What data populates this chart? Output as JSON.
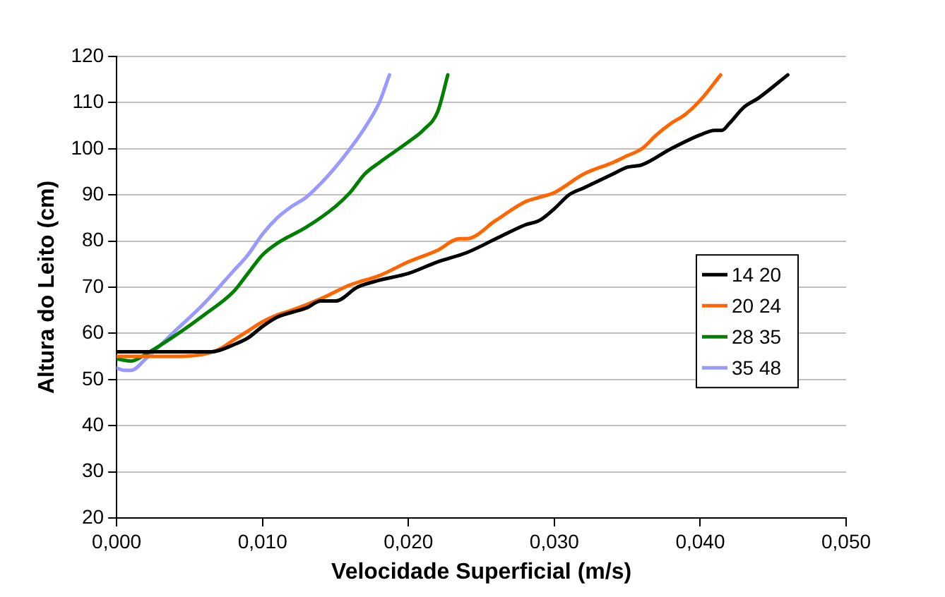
{
  "chart_data": {
    "type": "line",
    "xlabel": "Velocidade Superficial (m/s)",
    "ylabel": "Altura do Leito (cm)",
    "xlim": [
      0,
      0.05
    ],
    "xticks": [
      {
        "value": 0,
        "label": "0,000"
      },
      {
        "value": 0.01,
        "label": "0,010"
      },
      {
        "value": 0.02,
        "label": "0,020"
      },
      {
        "value": 0.03,
        "label": "0,030"
      },
      {
        "value": 0.04,
        "label": "0,040"
      },
      {
        "value": 0.05,
        "label": "0,050"
      }
    ],
    "ylim": [
      20,
      120
    ],
    "yticks": [
      20,
      30,
      40,
      50,
      60,
      70,
      80,
      90,
      100,
      110,
      120
    ],
    "grid": "y",
    "legend": "right",
    "marker": "none",
    "line_style": "solid",
    "series": [
      {
        "name": "14 20",
        "color": "#000000",
        "x": [
          0,
          0.0065,
          0.008,
          0.009,
          0.01,
          0.011,
          0.013,
          0.014,
          0.015,
          0.0165,
          0.018,
          0.02,
          0.022,
          0.024,
          0.026,
          0.028,
          0.029,
          0.03,
          0.031,
          0.032,
          0.034,
          0.035,
          0.036,
          0.038,
          0.04,
          0.041,
          0.0415,
          0.042,
          0.043,
          0.044,
          0.046
        ],
        "values": [
          56,
          56,
          57.5,
          59,
          61.5,
          63.5,
          65.5,
          67,
          67,
          70,
          71.5,
          73,
          75.5,
          77.5,
          80.5,
          83.5,
          84.5,
          87,
          90,
          91.5,
          94.5,
          96,
          96.5,
          100,
          103,
          104,
          104,
          105.5,
          109,
          111,
          116
        ]
      },
      {
        "name": "20 24",
        "color": "#ff6600",
        "x": [
          0,
          0.004,
          0.006,
          0.007,
          0.008,
          0.009,
          0.01,
          0.011,
          0.012,
          0.014,
          0.016,
          0.018,
          0.02,
          0.022,
          0.0235,
          0.024,
          0.026,
          0.028,
          0.029,
          0.03,
          0.032,
          0.034,
          0.035,
          0.036,
          0.037,
          0.038,
          0.039,
          0.04,
          0.0414
        ],
        "values": [
          55,
          55,
          55.5,
          56.5,
          58.5,
          60.5,
          62.5,
          64,
          65,
          67.5,
          70.5,
          72.5,
          75.5,
          78,
          80.5,
          80.5,
          84.5,
          88.5,
          89.5,
          90.5,
          94.5,
          97,
          98.5,
          100,
          103,
          105.5,
          107.5,
          110.5,
          116
        ]
      },
      {
        "name": "28 35",
        "color": "#008000",
        "x": [
          0,
          0.001,
          0.002,
          0.004,
          0.006,
          0.008,
          0.009,
          0.01,
          0.011,
          0.013,
          0.015,
          0.016,
          0.017,
          0.018,
          0.02,
          0.021,
          0.022,
          0.0227
        ],
        "values": [
          54.5,
          54,
          55.5,
          59.5,
          64,
          69,
          73,
          77,
          79.5,
          83,
          87.5,
          90.5,
          94.5,
          97,
          101.5,
          104,
          108,
          116
        ]
      },
      {
        "name": "35 48",
        "color": "#9999ff",
        "x": [
          0,
          0.0005,
          0.001,
          0.002,
          0.004,
          0.006,
          0.008,
          0.009,
          0.01,
          0.011,
          0.012,
          0.013,
          0.014,
          0.015,
          0.016,
          0.017,
          0.018,
          0.0187
        ],
        "values": [
          52.5,
          52,
          52,
          54.5,
          60.5,
          66.5,
          73.5,
          77,
          81.5,
          85,
          87.5,
          89.5,
          92.5,
          96,
          100,
          104.5,
          110,
          116
        ]
      }
    ]
  }
}
